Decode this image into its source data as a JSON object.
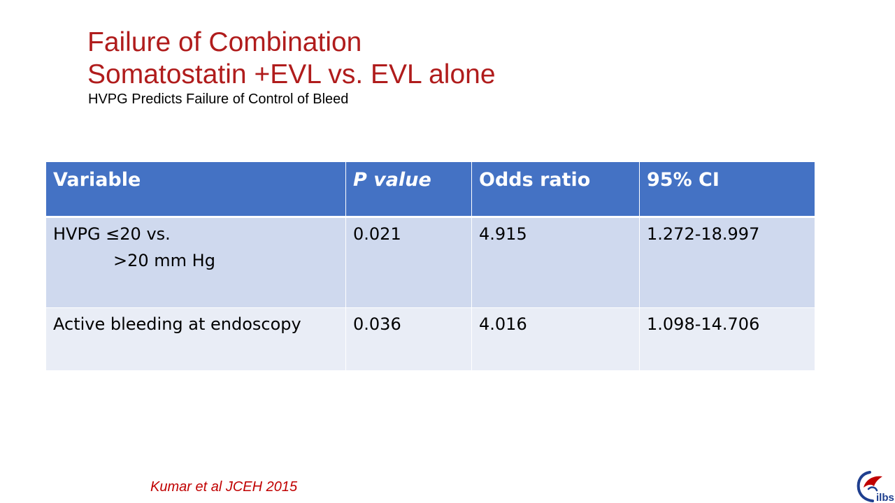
{
  "title": {
    "line1": "Failure of Combination",
    "line2": "Somatostatin +EVL vs. EVL alone"
  },
  "subtitle": "HVPG Predicts Failure of Control of Bleed",
  "table": {
    "headers": [
      "Variable",
      "P value",
      "Odds ratio",
      "95% CI"
    ],
    "rows": [
      {
        "variable_line1": "HVPG  ≤20 vs.",
        "variable_line2": ">20 mm Hg",
        "p_value": "0.021",
        "odds_ratio": "4.915",
        "ci": "1.272-18.997"
      },
      {
        "variable": "Active bleeding at endoscopy",
        "p_value": "0.036",
        "odds_ratio": "4.016",
        "ci": "1.098-14.706"
      }
    ]
  },
  "citation": "Kumar et al JCEH 2015",
  "logo": {
    "text": "ilbs",
    "icon": "ilbs-logo-icon",
    "colors": {
      "blue": "#1f3f8f",
      "red": "#c00000"
    }
  },
  "colors": {
    "title": "#b01c1c",
    "header_bg": "#4472c4",
    "row1_bg": "#cfd9ee",
    "row2_bg": "#e9edf6",
    "citation": "#c00000"
  }
}
